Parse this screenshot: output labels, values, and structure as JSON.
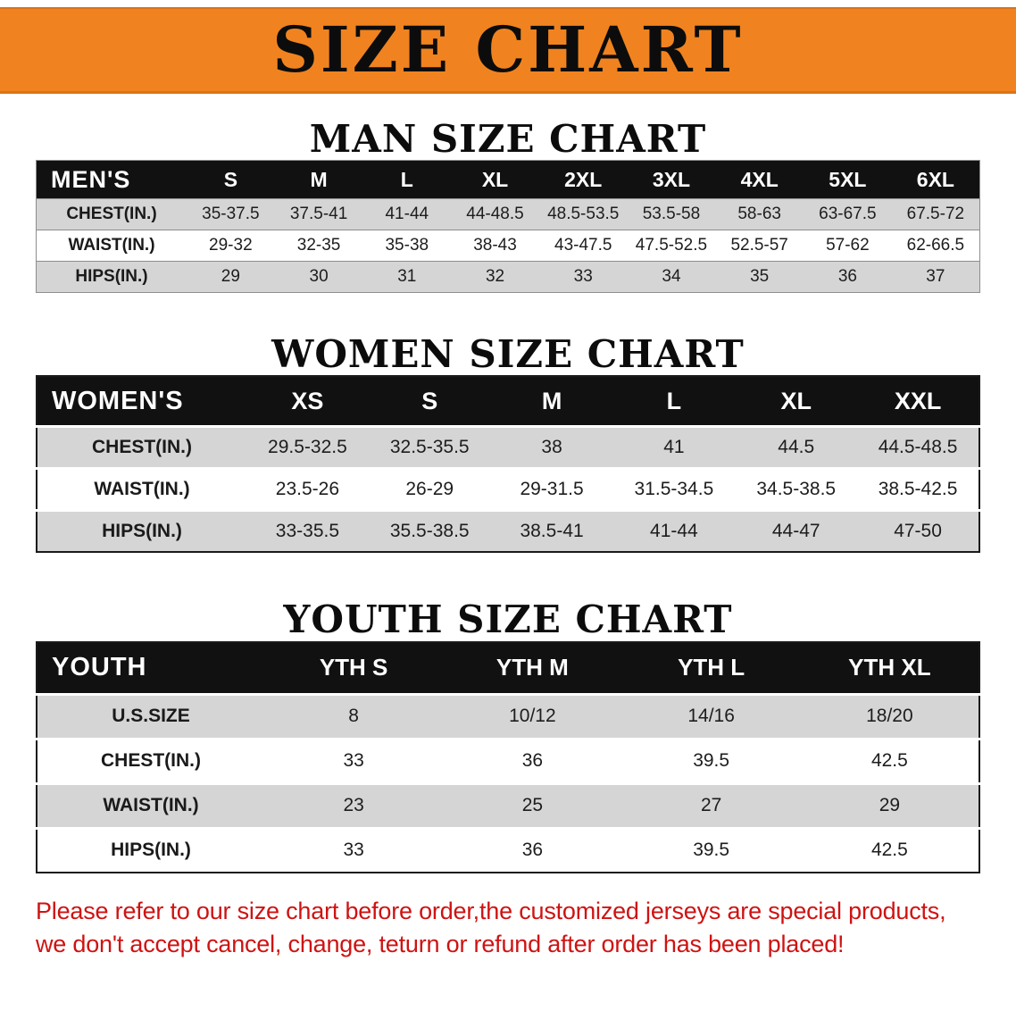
{
  "colors": {
    "banner_bg": "#F0831F",
    "header_bar": "#111111",
    "row_shade": "#D5D5D5",
    "disclaimer_red": "#CE1312"
  },
  "banner": {
    "title": "SIZE CHART"
  },
  "sections": [
    {
      "heading": "MAN SIZE CHART",
      "table": {
        "header": [
          "MEN'S",
          "S",
          "M",
          "L",
          "XL",
          "2XL",
          "3XL",
          "4XL",
          "5XL",
          "6XL"
        ],
        "rows": [
          {
            "label": "CHEST(IN.)",
            "values": [
              "35-37.5",
              "37.5-41",
              "41-44",
              "44-48.5",
              "48.5-53.5",
              "53.5-58",
              "58-63",
              "63-67.5",
              "67.5-72"
            ]
          },
          {
            "label": "WAIST(IN.)",
            "values": [
              "29-32",
              "32-35",
              "35-38",
              "38-43",
              "43-47.5",
              "47.5-52.5",
              "52.5-57",
              "57-62",
              "62-66.5"
            ]
          },
          {
            "label": "HIPS(IN.)",
            "values": [
              "29",
              "30",
              "31",
              "32",
              "33",
              "34",
              "35",
              "36",
              "37"
            ]
          }
        ]
      }
    },
    {
      "heading": "WOMEN SIZE CHART",
      "table": {
        "header": [
          "WOMEN'S",
          "XS",
          "S",
          "M",
          "L",
          "XL",
          "XXL"
        ],
        "rows": [
          {
            "label": "CHEST(IN.)",
            "values": [
              "29.5-32.5",
              "32.5-35.5",
              "38",
              "41",
              "44.5",
              "44.5-48.5"
            ]
          },
          {
            "label": "WAIST(IN.)",
            "values": [
              "23.5-26",
              "26-29",
              "29-31.5",
              "31.5-34.5",
              "34.5-38.5",
              "38.5-42.5"
            ]
          },
          {
            "label": "HIPS(IN.)",
            "values": [
              "33-35.5",
              "35.5-38.5",
              "38.5-41",
              "41-44",
              "44-47",
              "47-50"
            ]
          }
        ]
      }
    },
    {
      "heading": "YOUTH SIZE CHART",
      "table": {
        "header": [
          "YOUTH",
          "YTH S",
          "YTH M",
          "YTH L",
          "YTH XL"
        ],
        "rows": [
          {
            "label": "U.S.SIZE",
            "values": [
              "8",
              "10/12",
              "14/16",
              "18/20"
            ]
          },
          {
            "label": "CHEST(IN.)",
            "values": [
              "33",
              "36",
              "39.5",
              "42.5"
            ]
          },
          {
            "label": "WAIST(IN.)",
            "values": [
              "23",
              "25",
              "27",
              "29"
            ]
          },
          {
            "label": "HIPS(IN.)",
            "values": [
              "33",
              "36",
              "39.5",
              "42.5"
            ]
          }
        ]
      }
    }
  ],
  "disclaimer": {
    "line1": "Please refer to our size chart before order,the customized jerseys are special products,",
    "line2": "we don't accept cancel, change, teturn or refund after order has been placed!"
  }
}
